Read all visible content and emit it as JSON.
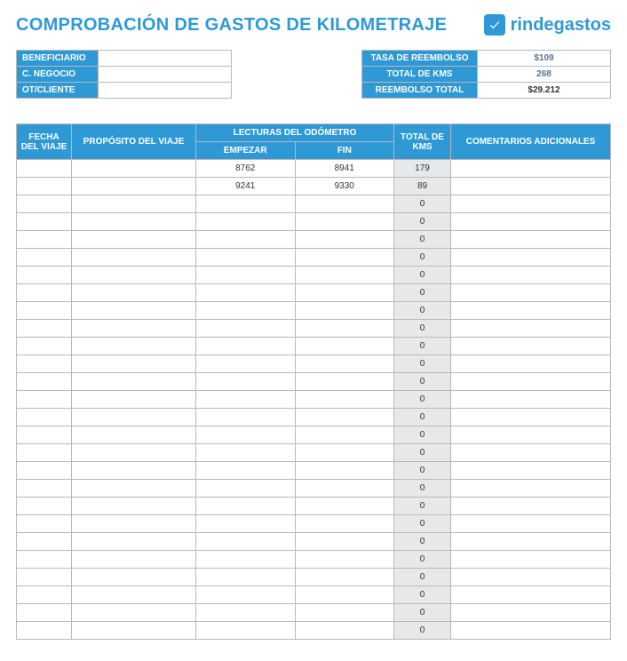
{
  "colors": {
    "brand": "#2f99d6",
    "title": "#2f99d6",
    "headerBg": "#2f99d6",
    "logoText": "#2f99d6",
    "shaded": "#e7e8ea",
    "valueText": "#5b738e"
  },
  "header": {
    "title": "COMPROBACIÓN DE GASTOS DE KILOMETRAJE",
    "logo_text": "rindegastos"
  },
  "left_info": {
    "rows": [
      {
        "label": "BENEFICIARIO",
        "value": ""
      },
      {
        "label": "C. NEGOCIO",
        "value": ""
      },
      {
        "label": "OT/CLIENTE",
        "value": ""
      }
    ]
  },
  "right_info": {
    "rows": [
      {
        "label": "TASA DE REEMBOLSO",
        "value": "$109"
      },
      {
        "label": "TOTAL DE KMS",
        "value": "268"
      },
      {
        "label": "REEMBOLSO TOTAL",
        "value": "$29.212"
      }
    ]
  },
  "table": {
    "headers": {
      "fecha": "FECHA DEL VIAJE",
      "proposito": "PROPÓSITO DEL VIAJE",
      "odometro": "LECTURAS DEL ODÓMETRO",
      "empezar": "EMPEZAR",
      "fin": "FIN",
      "total": "TOTAL DE KMS",
      "comentarios": "COMENTARIOS ADICIONALES"
    },
    "rows": [
      {
        "fecha": "",
        "proposito": "",
        "empezar": "8762",
        "fin": "8941",
        "total": "179",
        "com": ""
      },
      {
        "fecha": "",
        "proposito": "",
        "empezar": "9241",
        "fin": "9330",
        "total": "89",
        "com": ""
      },
      {
        "fecha": "",
        "proposito": "",
        "empezar": "",
        "fin": "",
        "total": "0",
        "com": ""
      },
      {
        "fecha": "",
        "proposito": "",
        "empezar": "",
        "fin": "",
        "total": "0",
        "com": ""
      },
      {
        "fecha": "",
        "proposito": "",
        "empezar": "",
        "fin": "",
        "total": "0",
        "com": ""
      },
      {
        "fecha": "",
        "proposito": "",
        "empezar": "",
        "fin": "",
        "total": "0",
        "com": ""
      },
      {
        "fecha": "",
        "proposito": "",
        "empezar": "",
        "fin": "",
        "total": "0",
        "com": ""
      },
      {
        "fecha": "",
        "proposito": "",
        "empezar": "",
        "fin": "",
        "total": "0",
        "com": ""
      },
      {
        "fecha": "",
        "proposito": "",
        "empezar": "",
        "fin": "",
        "total": "0",
        "com": ""
      },
      {
        "fecha": "",
        "proposito": "",
        "empezar": "",
        "fin": "",
        "total": "0",
        "com": ""
      },
      {
        "fecha": "",
        "proposito": "",
        "empezar": "",
        "fin": "",
        "total": "0",
        "com": ""
      },
      {
        "fecha": "",
        "proposito": "",
        "empezar": "",
        "fin": "",
        "total": "0",
        "com": ""
      },
      {
        "fecha": "",
        "proposito": "",
        "empezar": "",
        "fin": "",
        "total": "0",
        "com": ""
      },
      {
        "fecha": "",
        "proposito": "",
        "empezar": "",
        "fin": "",
        "total": "0",
        "com": ""
      },
      {
        "fecha": "",
        "proposito": "",
        "empezar": "",
        "fin": "",
        "total": "0",
        "com": ""
      },
      {
        "fecha": "",
        "proposito": "",
        "empezar": "",
        "fin": "",
        "total": "0",
        "com": ""
      },
      {
        "fecha": "",
        "proposito": "",
        "empezar": "",
        "fin": "",
        "total": "0",
        "com": ""
      },
      {
        "fecha": "",
        "proposito": "",
        "empezar": "",
        "fin": "",
        "total": "0",
        "com": ""
      },
      {
        "fecha": "",
        "proposito": "",
        "empezar": "",
        "fin": "",
        "total": "0",
        "com": ""
      },
      {
        "fecha": "",
        "proposito": "",
        "empezar": "",
        "fin": "",
        "total": "0",
        "com": ""
      },
      {
        "fecha": "",
        "proposito": "",
        "empezar": "",
        "fin": "",
        "total": "0",
        "com": ""
      },
      {
        "fecha": "",
        "proposito": "",
        "empezar": "",
        "fin": "",
        "total": "0",
        "com": ""
      },
      {
        "fecha": "",
        "proposito": "",
        "empezar": "",
        "fin": "",
        "total": "0",
        "com": ""
      },
      {
        "fecha": "",
        "proposito": "",
        "empezar": "",
        "fin": "",
        "total": "0",
        "com": ""
      },
      {
        "fecha": "",
        "proposito": "",
        "empezar": "",
        "fin": "",
        "total": "0",
        "com": ""
      },
      {
        "fecha": "",
        "proposito": "",
        "empezar": "",
        "fin": "",
        "total": "0",
        "com": ""
      },
      {
        "fecha": "",
        "proposito": "",
        "empezar": "",
        "fin": "",
        "total": "0",
        "com": ""
      }
    ]
  }
}
